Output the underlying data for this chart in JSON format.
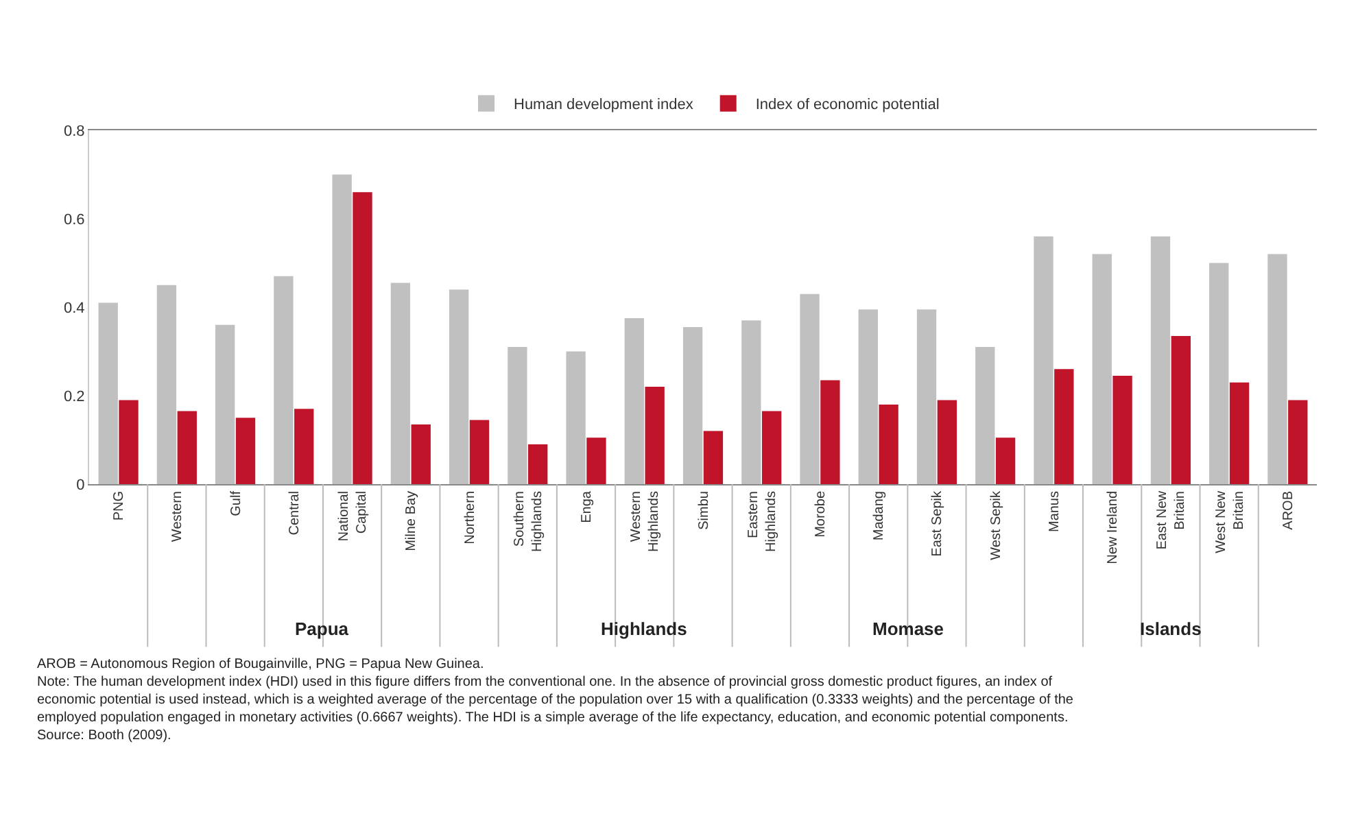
{
  "chart_data": {
    "type": "bar",
    "categories": [
      "PNG",
      "Western",
      "Gulf",
      "Central",
      "National Capital",
      "Milne Bay",
      "Northern",
      "Southern Highlands",
      "Enga",
      "Western Highlands",
      "Simbu",
      "Eastern Highlands",
      "Morobe",
      "Madang",
      "East Sepik",
      "West Sepik",
      "Manus",
      "New Ireland",
      "East New Britain",
      "West New Britain",
      "AROB"
    ],
    "series": [
      {
        "name": "Human development index",
        "color": "#c0c0c0",
        "values": [
          0.41,
          0.45,
          0.36,
          0.47,
          0.7,
          0.455,
          0.44,
          0.31,
          0.3,
          0.375,
          0.355,
          0.37,
          0.43,
          0.395,
          0.395,
          0.31,
          0.56,
          0.52,
          0.56,
          0.5,
          0.52
        ]
      },
      {
        "name": "Index of economic potential",
        "color": "#c0142b",
        "values": [
          0.19,
          0.165,
          0.15,
          0.17,
          0.66,
          0.135,
          0.145,
          0.09,
          0.105,
          0.22,
          0.12,
          0.165,
          0.235,
          0.18,
          0.19,
          0.105,
          0.26,
          0.245,
          0.335,
          0.23,
          0.19
        ]
      }
    ],
    "ylim": [
      0,
      0.8
    ],
    "yticks": [
      0,
      0.2,
      0.4,
      0.6,
      0.8
    ],
    "legend": "top",
    "annotations": [
      "Papua",
      "Highlands",
      "Momase",
      "Islands",
      "AROB = Autonomous Region of Bougainville, PNG = Papua New Guinea.",
      "Note: The human development index (HDI) used in this figure differs from the conventional one. In the absence of provincial gross domestic product figures, an index of economic potential is used instead, which is a weighted average of the percentage of the population over 15 with a qualification (0.3333 weights) and the percentage of the employed population engaged in monetary activities (0.6667 weights). The HDI is a simple average of the life expectancy, education, and economic potential components.",
      "Source: Booth (2009)."
    ]
  }
}
